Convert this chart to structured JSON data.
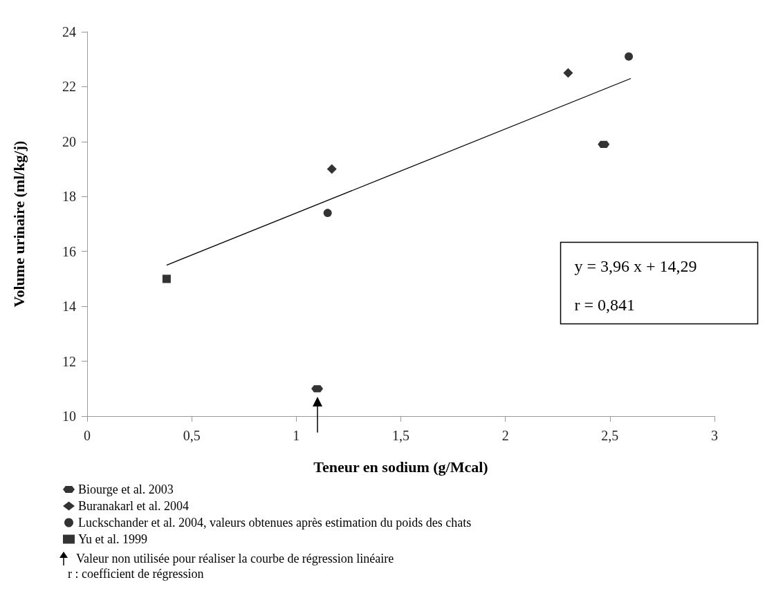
{
  "chart_data": {
    "type": "scatter",
    "xlabel": "Teneur en sodium (g/Mcal)",
    "ylabel": "Volume urinaire (ml/kg/j)",
    "xlim": [
      0,
      3
    ],
    "xticks": [
      0,
      {
        "value": 0.5,
        "label": "0,5"
      },
      1,
      {
        "value": 1.5,
        "label": "1,5"
      },
      2,
      {
        "value": 2.5,
        "label": "2,5"
      },
      3
    ],
    "ylim": [
      10,
      24
    ],
    "yticks": [
      10,
      12,
      14,
      16,
      18,
      20,
      22,
      24
    ],
    "grid": false,
    "legend": "bottom left",
    "series": [
      {
        "name": "Biourge et al. 2003",
        "color": "#000000",
        "x": [
          1.1,
          2.47
        ],
        "values": [
          11.0,
          19.9
        ]
      },
      {
        "name": "Buranakarl et al. 2004",
        "color": "#000000",
        "marker": "diamond",
        "x": [
          1.17,
          2.3
        ],
        "values": [
          19.0,
          22.5
        ]
      },
      {
        "name": "Luckschander et al. 2004, valeurs obtenues après estimation du poids des chats",
        "color": "#000000",
        "marker": "circle",
        "x": [
          1.15,
          2.59
        ],
        "values": [
          17.4,
          23.1
        ]
      },
      {
        "name": "Yu et al. 1999",
        "color": "#000000",
        "marker": "square",
        "x": [
          0.38
        ],
        "values": [
          15.0
        ]
      },
      {
        "type": "line",
        "color": "#000000",
        "marker": "none",
        "x": [
          0.38,
          2.6
        ],
        "values": [
          15.5,
          22.3
        ]
      }
    ],
    "annotations": [
      "y = 3,96 x + 14,29",
      "r = 0,841",
      "Valeur non utilisée pour réaliser la courbe de régression linéaire",
      "r : coefficient de régression"
    ]
  }
}
